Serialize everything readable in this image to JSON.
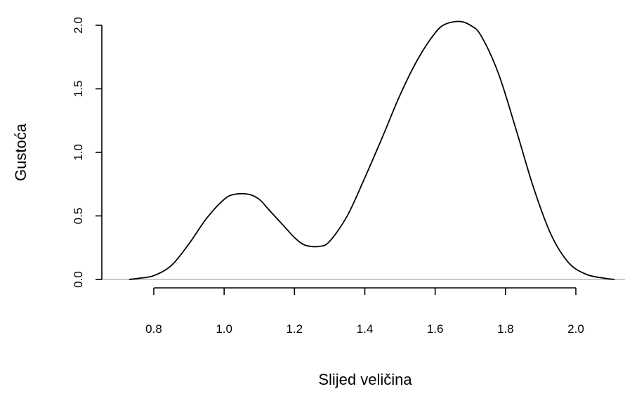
{
  "chart_data": {
    "type": "line",
    "title": "",
    "xlabel": "Slijed veličina",
    "ylabel": "Gustoća",
    "xlim": [
      0.8,
      2.0
    ],
    "ylim": [
      0.0,
      2.0
    ],
    "x_ticks": [
      0.8,
      1.0,
      1.2,
      1.4,
      1.6,
      1.8,
      2.0
    ],
    "x_tick_labels": [
      "0.8",
      "1.0",
      "1.2",
      "1.4",
      "1.6",
      "1.8",
      "2.0"
    ],
    "y_ticks": [
      0.0,
      0.5,
      1.0,
      1.5,
      2.0
    ],
    "y_tick_labels": [
      "0.0",
      "0.5",
      "1.0",
      "1.5",
      "2.0"
    ],
    "grid": false,
    "series": [
      {
        "x": [
          0.73,
          0.76,
          0.8,
          0.85,
          0.9,
          0.95,
          1.0,
          1.03,
          1.07,
          1.1,
          1.13,
          1.17,
          1.2,
          1.23,
          1.27,
          1.3,
          1.35,
          1.4,
          1.45,
          1.5,
          1.55,
          1.6,
          1.63,
          1.67,
          1.7,
          1.73,
          1.78,
          1.83,
          1.88,
          1.93,
          1.98,
          2.03,
          2.08,
          2.11
        ],
        "y": [
          0.0,
          0.01,
          0.03,
          0.11,
          0.28,
          0.48,
          0.63,
          0.67,
          0.67,
          0.63,
          0.54,
          0.42,
          0.33,
          0.27,
          0.26,
          0.3,
          0.5,
          0.8,
          1.12,
          1.45,
          1.73,
          1.94,
          2.01,
          2.03,
          2.0,
          1.92,
          1.62,
          1.18,
          0.72,
          0.35,
          0.13,
          0.04,
          0.01,
          0.0
        ]
      }
    ]
  }
}
